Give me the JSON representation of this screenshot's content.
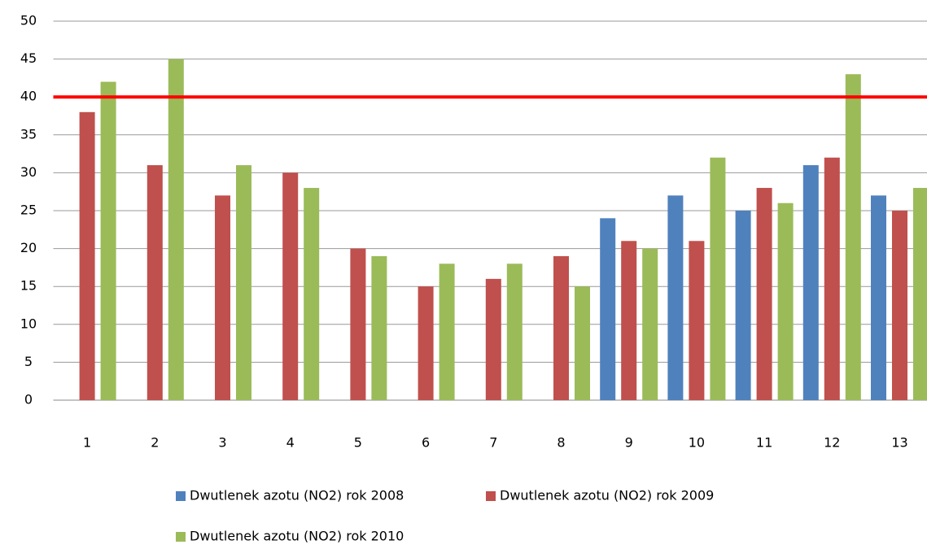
{
  "chart_data": {
    "type": "bar",
    "categories": [
      "1",
      "2",
      "3",
      "4",
      "5",
      "6",
      "7",
      "8",
      "9",
      "10",
      "11",
      "12",
      "13"
    ],
    "series": [
      {
        "name": "Dwutlenek azotu (NO2) rok 2008",
        "color": "#4f81bd",
        "values": [
          null,
          null,
          null,
          null,
          null,
          null,
          null,
          null,
          24,
          27,
          25,
          31,
          27
        ]
      },
      {
        "name": "Dwutlenek azotu (NO2) rok 2009",
        "color": "#c0504d",
        "values": [
          38,
          31,
          27,
          30,
          20,
          15,
          16,
          19,
          21,
          21,
          28,
          32,
          25
        ]
      },
      {
        "name": "Dwutlenek azotu (NO2) rok 2010",
        "color": "#9bbb59",
        "values": [
          42,
          45,
          31,
          28,
          19,
          18,
          18,
          15,
          20,
          32,
          26,
          43,
          28
        ]
      }
    ],
    "reference_line": {
      "value": 40,
      "color": "#ff0000"
    },
    "ylim": [
      0,
      50
    ],
    "yticks": [
      0,
      5,
      10,
      15,
      20,
      25,
      30,
      35,
      40,
      45,
      50
    ],
    "grid": true,
    "legend": "bottom"
  }
}
